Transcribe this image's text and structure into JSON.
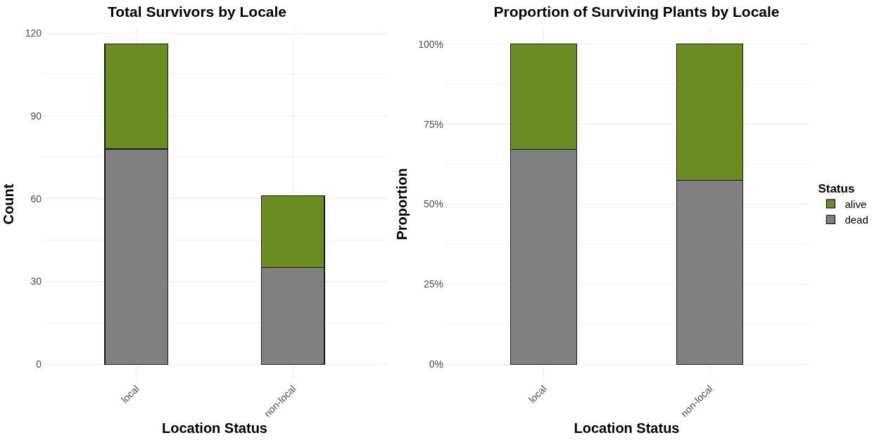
{
  "chart_data": [
    {
      "type": "bar",
      "title": "Total Survivors by Locale",
      "xlabel": "Location Status",
      "ylabel": "Count",
      "categories": [
        "local",
        "non-local"
      ],
      "stacked": true,
      "series": [
        {
          "color": "#808080",
          "values": [
            78,
            35
          ]
        },
        {
          "color": "#6b8e23",
          "values": [
            38,
            26
          ]
        }
      ],
      "ylim": [
        -5.8,
        121.8
      ],
      "yticks": [
        0,
        30,
        60,
        90,
        120
      ],
      "grid": true,
      "legend": false
    },
    {
      "type": "bar",
      "title": "Proportion of Surviving Plants by Locale",
      "xlabel": "Location Status",
      "ylabel": "Proportion",
      "categories": [
        "local",
        "non-local"
      ],
      "stacked": true,
      "legend_title": "Status",
      "series": [
        {
          "name": "dead",
          "color": "#808080",
          "values": [
            67.2,
            57.4
          ]
        },
        {
          "name": "alive",
          "color": "#6b8e23",
          "values": [
            32.8,
            42.6
          ]
        }
      ],
      "ylim": [
        -5,
        105
      ],
      "yticks": [
        {
          "value": 0,
          "label": "0%"
        },
        {
          "value": 25,
          "label": "25%"
        },
        {
          "value": 50,
          "label": "50%"
        },
        {
          "value": 75,
          "label": "75%"
        },
        {
          "value": 100,
          "label": "100%"
        }
      ],
      "grid": true,
      "legend": "right"
    }
  ]
}
